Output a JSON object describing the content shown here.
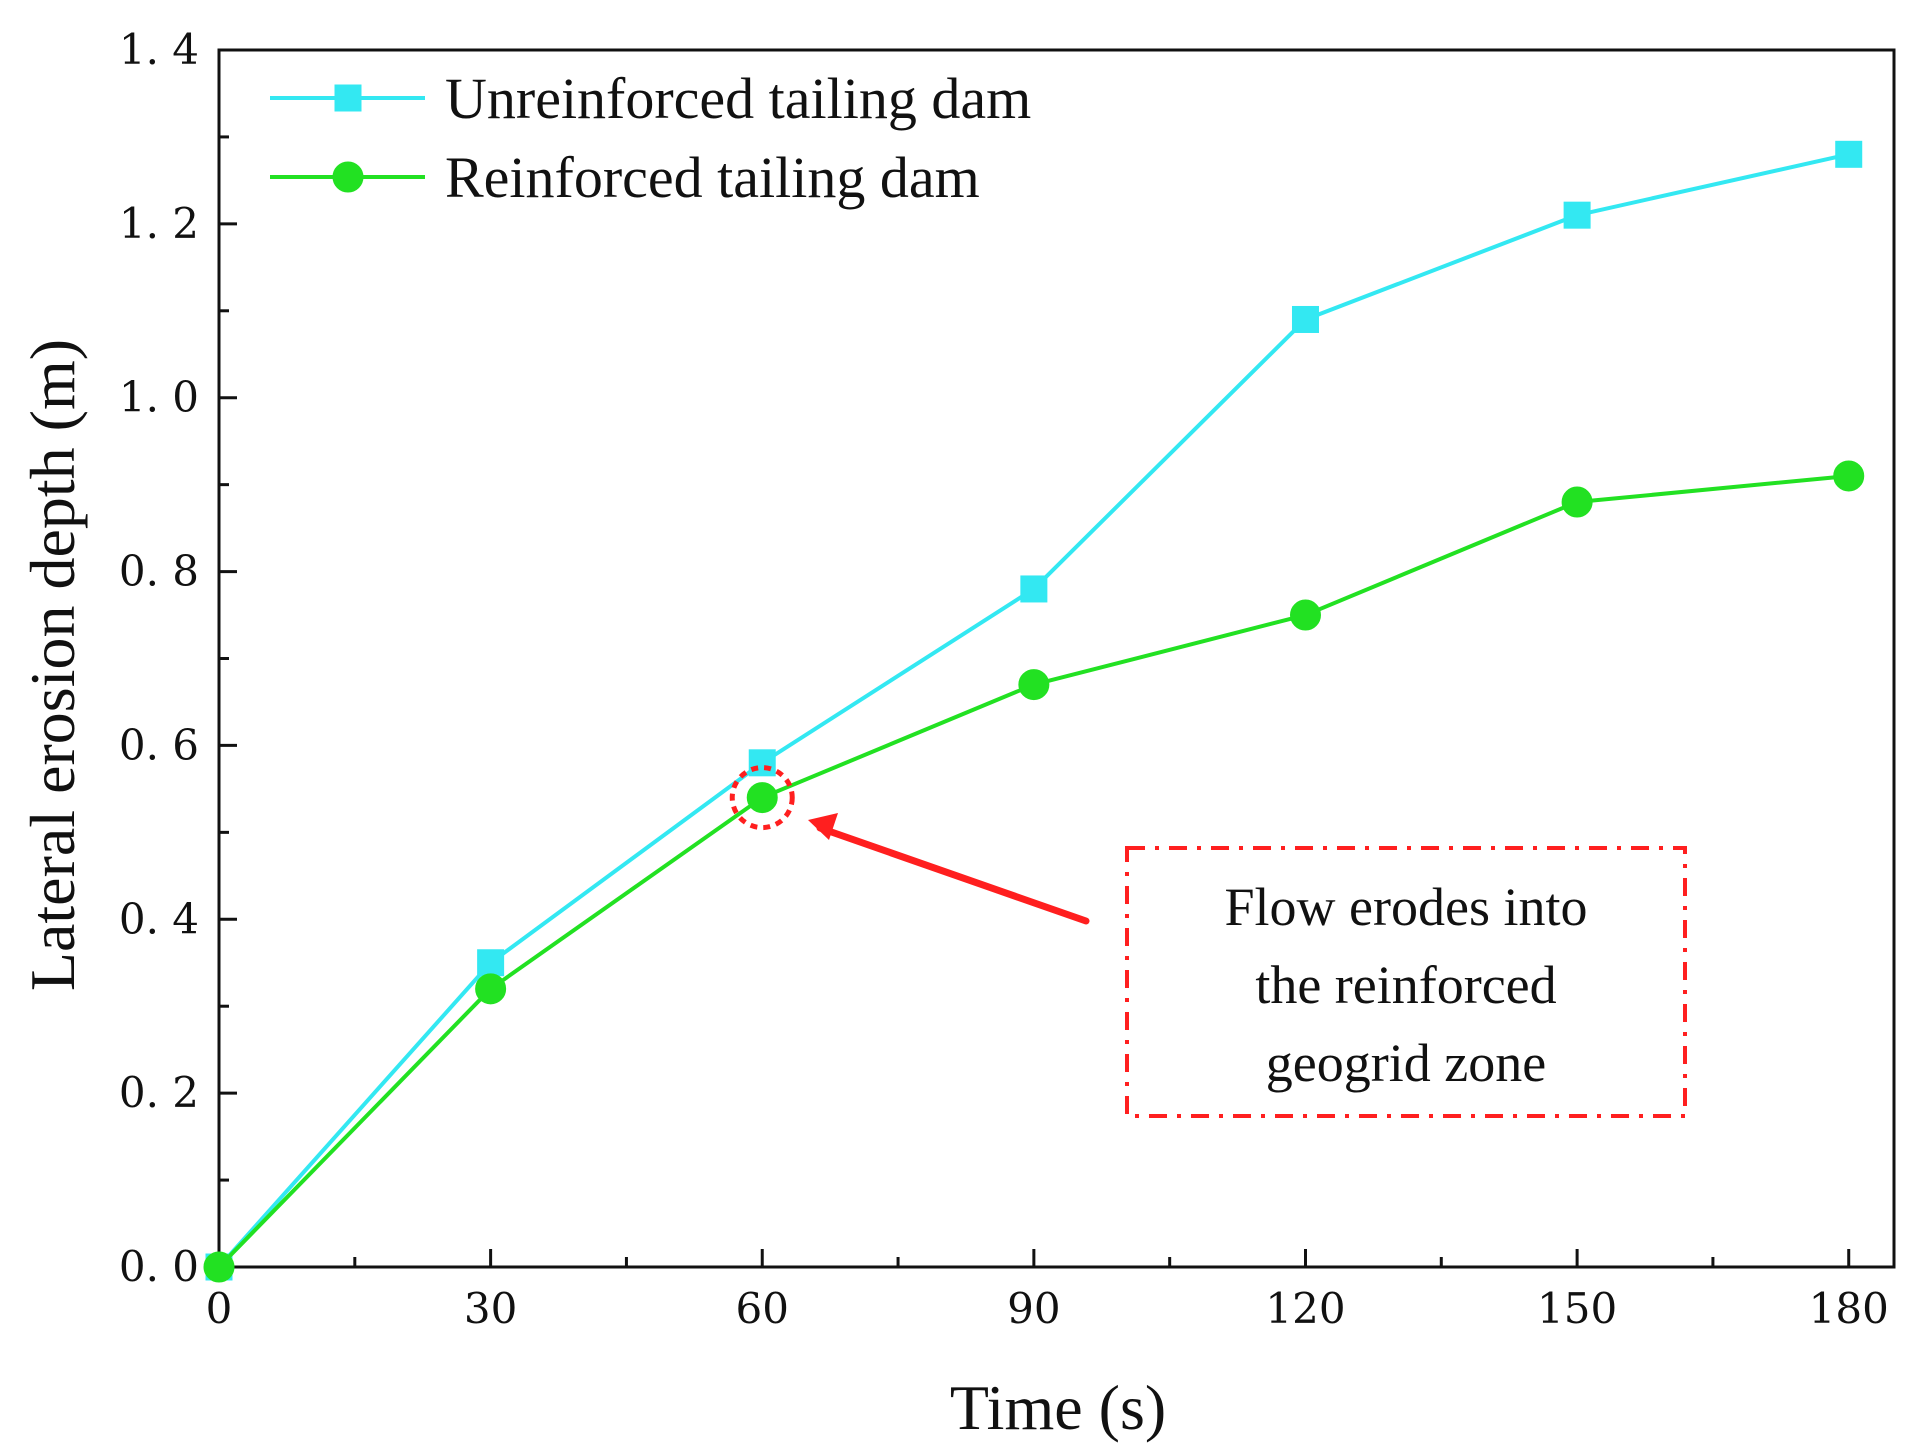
{
  "chart_data": {
    "type": "line",
    "xlabel": "Time (s)",
    "ylabel": "Lateral erosion depth (m)",
    "x": [
      0,
      30,
      60,
      90,
      120,
      150,
      180
    ],
    "xlim": [
      0,
      185
    ],
    "ylim": [
      0.0,
      1.4
    ],
    "xticks": [
      0,
      30,
      60,
      90,
      120,
      150,
      180
    ],
    "xtick_labels": [
      "0",
      "30",
      "60",
      "90",
      "120",
      "150",
      "180"
    ],
    "yticks": [
      0.0,
      0.2,
      0.4,
      0.6,
      0.8,
      1.0,
      1.2,
      1.4
    ],
    "ytick_labels": [
      "0. 0",
      "0. 2",
      "0. 4",
      "0. 6",
      "0. 8",
      "1. 0",
      "1. 2",
      "1. 4"
    ],
    "xminor_ticks": [
      15,
      45,
      75,
      105,
      135,
      165
    ],
    "yminor_ticks": [
      0.1,
      0.3,
      0.5,
      0.7,
      0.9,
      1.1,
      1.3
    ],
    "grid": false,
    "legend_position": "top-left",
    "series": [
      {
        "name": "Unreinforced tailing dam",
        "marker": "square",
        "color": "#33e8f2",
        "values": [
          0.0,
          0.35,
          0.58,
          0.78,
          1.09,
          1.21,
          1.28
        ]
      },
      {
        "name": "Reinforced tailing dam",
        "marker": "circle",
        "color": "#22e122",
        "values": [
          0.0,
          0.32,
          0.54,
          0.67,
          0.75,
          0.88,
          0.91
        ]
      }
    ],
    "annotation": {
      "lines": [
        "Flow erodes into",
        "the reinforced",
        "geogrid zone"
      ],
      "target_x": 60,
      "target_y": 0.54,
      "color": "#ff1f1f"
    }
  }
}
